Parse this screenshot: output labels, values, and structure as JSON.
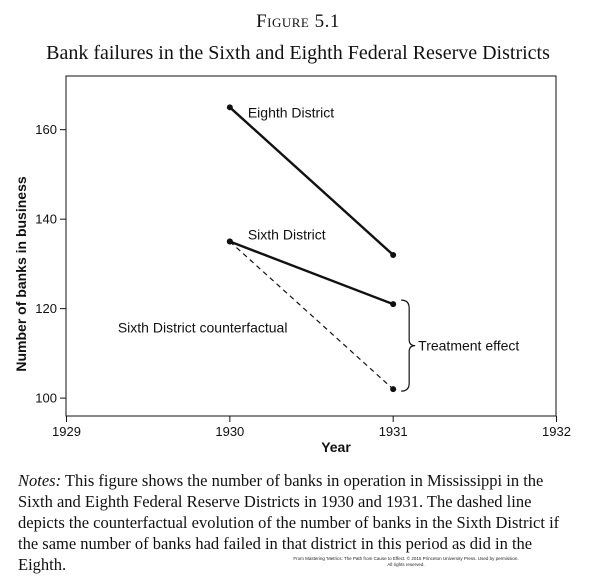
{
  "figure_label": "Figure 5.1",
  "title": "Bank failures in the Sixth and Eighth Federal Reserve Districts",
  "notes": {
    "lead": "Notes:",
    "text": " This figure shows the number of banks in operation in Mississippi in the Sixth and Eighth Federal Reserve Districts in 1930 and 1931. The dashed line depicts the counterfactual evolution of the number of banks in the Sixth District if the same number of banks had failed in that district in this period as did in the Eighth."
  },
  "credit": {
    "line1": "From Mastering 'Metrics: The Path from Cause to Effect. © 2015 Princeton University Press. Used by permission.",
    "line2": "All rights reserved."
  },
  "chart_data": {
    "type": "line",
    "xlabel": "Year",
    "ylabel": "Number of banks in business",
    "xlim": [
      1929,
      1932
    ],
    "ylim": [
      96,
      172
    ],
    "xticks": [
      1929,
      1930,
      1931,
      1932
    ],
    "yticks": [
      100,
      120,
      140,
      160
    ],
    "grid": false,
    "series": [
      {
        "name": "Eighth District",
        "x": [
          1930,
          1931
        ],
        "y": [
          165,
          132
        ],
        "style": "solid"
      },
      {
        "name": "Sixth District",
        "x": [
          1930,
          1931
        ],
        "y": [
          135,
          121
        ],
        "style": "solid"
      },
      {
        "name": "Sixth District counterfactual",
        "x": [
          1930,
          1931
        ],
        "y": [
          135,
          102
        ],
        "style": "dashed"
      }
    ],
    "annotations": [
      {
        "text": "Treatment effect",
        "x": 1931,
        "y_range": [
          102,
          121
        ]
      }
    ]
  }
}
